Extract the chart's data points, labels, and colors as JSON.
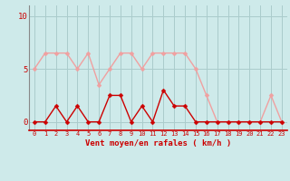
{
  "x": [
    0,
    1,
    2,
    3,
    4,
    5,
    6,
    7,
    8,
    9,
    10,
    11,
    12,
    13,
    14,
    15,
    16,
    17,
    18,
    19,
    20,
    21,
    22,
    23
  ],
  "rafales": [
    5,
    6.5,
    6.5,
    6.5,
    5,
    6.5,
    3.5,
    5,
    6.5,
    6.5,
    5,
    6.5,
    6.5,
    6.5,
    6.5,
    5,
    2.5,
    0,
    0,
    0,
    0,
    0,
    2.5,
    0
  ],
  "moyen": [
    0,
    0,
    1.5,
    0,
    1.5,
    0,
    0,
    2.5,
    2.5,
    0,
    1.5,
    0,
    3,
    1.5,
    1.5,
    0,
    0,
    0,
    0,
    0,
    0,
    0,
    0,
    0
  ],
  "bg_color": "#ceeaea",
  "line_color_rafales": "#f0a0a0",
  "line_color_moyen": "#cc0000",
  "grid_color": "#aacccc",
  "xlabel": "Vent moyen/en rafales ( km/h )",
  "yticks": [
    0,
    5,
    10
  ],
  "ylim": [
    -0.8,
    11
  ],
  "xlim": [
    -0.5,
    23.5
  ],
  "marker_size": 2.5,
  "line_width": 1.0,
  "label_color": "#cc0000"
}
